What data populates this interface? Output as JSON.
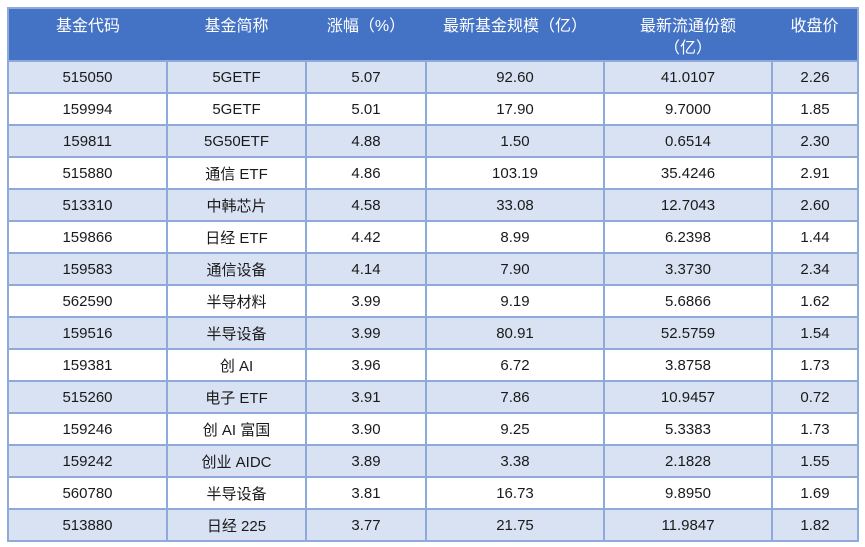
{
  "chart_data": {
    "type": "table",
    "columns": [
      {
        "key": "fund-code",
        "label": "基金代码"
      },
      {
        "key": "fund-name",
        "label": "基金简称"
      },
      {
        "key": "change-pct",
        "label": "涨幅（%）"
      },
      {
        "key": "fund-scale",
        "label": "最新基金规模（亿）"
      },
      {
        "key": "circulating-shares",
        "label": "最新流通份额\n（亿）"
      },
      {
        "key": "close-price",
        "label": "收盘价"
      }
    ],
    "rows": [
      [
        "515050",
        "5GETF",
        "5.07",
        "92.60",
        "41.0107",
        "2.26"
      ],
      [
        "159994",
        "5GETF",
        "5.01",
        "17.90",
        "9.7000",
        "1.85"
      ],
      [
        "159811",
        "5G50ETF",
        "4.88",
        "1.50",
        "0.6514",
        "2.30"
      ],
      [
        "515880",
        "通信 ETF",
        "4.86",
        "103.19",
        "35.4246",
        "2.91"
      ],
      [
        "513310",
        "中韩芯片",
        "4.58",
        "33.08",
        "12.7043",
        "2.60"
      ],
      [
        "159866",
        "日经 ETF",
        "4.42",
        "8.99",
        "6.2398",
        "1.44"
      ],
      [
        "159583",
        "通信设备",
        "4.14",
        "7.90",
        "3.3730",
        "2.34"
      ],
      [
        "562590",
        "半导材料",
        "3.99",
        "9.19",
        "5.6866",
        "1.62"
      ],
      [
        "159516",
        "半导设备",
        "3.99",
        "80.91",
        "52.5759",
        "1.54"
      ],
      [
        "159381",
        "创 AI",
        "3.96",
        "6.72",
        "3.8758",
        "1.73"
      ],
      [
        "515260",
        "电子 ETF",
        "3.91",
        "7.86",
        "10.9457",
        "0.72"
      ],
      [
        "159246",
        "创 AI 富国",
        "3.90",
        "9.25",
        "5.3383",
        "1.73"
      ],
      [
        "159242",
        "创业 AIDC",
        "3.89",
        "3.38",
        "2.1828",
        "1.55"
      ],
      [
        "560780",
        "半导设备",
        "3.81",
        "16.73",
        "9.8950",
        "1.69"
      ],
      [
        "513880",
        "日经 225",
        "3.77",
        "21.75",
        "11.9847",
        "1.82"
      ]
    ],
    "colors": {
      "header_bg": "#4472C4",
      "header_text": "#FFFFFF",
      "stripe_bg": "#D9E2F3",
      "row_bg": "#FFFFFF",
      "border": "#8EAADB",
      "body_text": "#1A1A1A"
    }
  }
}
